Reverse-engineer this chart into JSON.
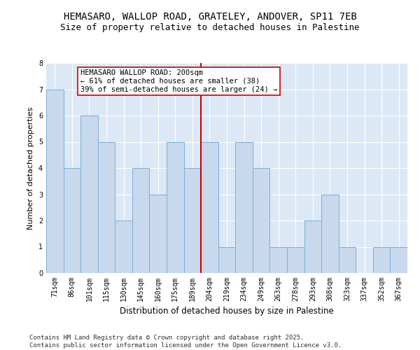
{
  "title": "HEMASARO, WALLOP ROAD, GRATELEY, ANDOVER, SP11 7EB",
  "subtitle": "Size of property relative to detached houses in Palestine",
  "xlabel": "Distribution of detached houses by size in Palestine",
  "ylabel": "Number of detached properties",
  "categories": [
    "71sqm",
    "86sqm",
    "101sqm",
    "115sqm",
    "130sqm",
    "145sqm",
    "160sqm",
    "175sqm",
    "189sqm",
    "204sqm",
    "219sqm",
    "234sqm",
    "249sqm",
    "263sqm",
    "278sqm",
    "293sqm",
    "308sqm",
    "323sqm",
    "337sqm",
    "352sqm",
    "367sqm"
  ],
  "values": [
    7,
    4,
    6,
    5,
    2,
    4,
    3,
    5,
    4,
    5,
    1,
    5,
    4,
    1,
    1,
    2,
    3,
    1,
    0,
    1,
    1
  ],
  "bar_color": "#c8d8ed",
  "bar_edge_color": "#7bafd4",
  "vline_color": "#cc0000",
  "annotation_text": "HEMASARO WALLOP ROAD: 200sqm\n← 61% of detached houses are smaller (38)\n39% of semi-detached houses are larger (24) →",
  "annotation_box_color": "#ffffff",
  "annotation_box_edge": "#cc0000",
  "ylim": [
    0,
    8
  ],
  "yticks": [
    0,
    1,
    2,
    3,
    4,
    5,
    6,
    7,
    8
  ],
  "background_color": "#dce8f5",
  "footer_line1": "Contains HM Land Registry data © Crown copyright and database right 2025.",
  "footer_line2": "Contains public sector information licensed under the Open Government Licence v3.0.",
  "title_fontsize": 10,
  "subtitle_fontsize": 9,
  "xlabel_fontsize": 8.5,
  "ylabel_fontsize": 8,
  "tick_fontsize": 7,
  "footer_fontsize": 6.5,
  "annotation_fontsize": 7.5
}
